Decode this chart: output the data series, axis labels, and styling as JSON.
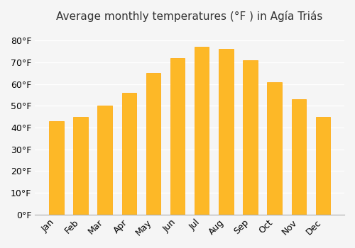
{
  "title": "Average monthly temperatures (°F ) in Agía Triás",
  "months": [
    "Jan",
    "Feb",
    "Mar",
    "Apr",
    "May",
    "Jun",
    "Jul",
    "Aug",
    "Sep",
    "Oct",
    "Nov",
    "Dec"
  ],
  "values": [
    43,
    45,
    50,
    56,
    65,
    72,
    77,
    76,
    71,
    61,
    53,
    45
  ],
  "bar_color": "#FDB827",
  "bar_edge_color": "#FFA500",
  "background_color": "#f5f5f5",
  "grid_color": "#ffffff",
  "ylim": [
    0,
    85
  ],
  "yticks": [
    0,
    10,
    20,
    30,
    40,
    50,
    60,
    70,
    80
  ],
  "title_fontsize": 11,
  "tick_fontsize": 9
}
